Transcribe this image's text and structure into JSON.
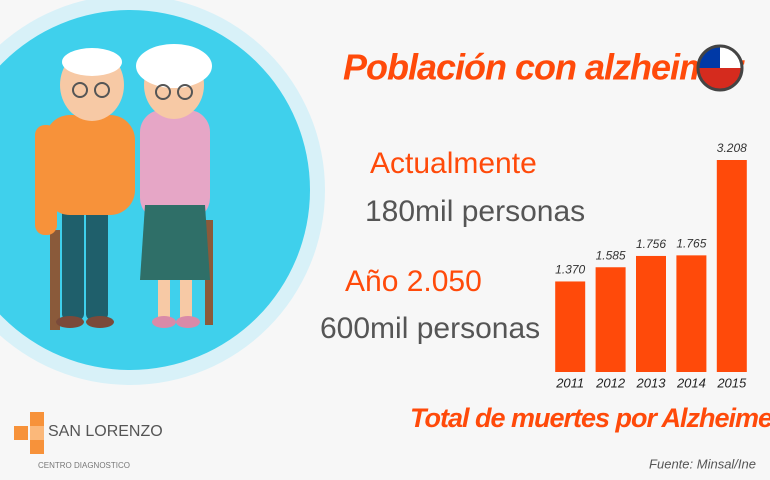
{
  "header": {
    "title": "Población con alzheimer"
  },
  "stats": [
    {
      "label": "Actualmente",
      "value": "180mil personas"
    },
    {
      "label": "Año 2.050",
      "value": "600mil personas"
    }
  ],
  "chart_data": {
    "type": "bar",
    "title": "Total de muertes por Alzheimer",
    "categories": [
      "2011",
      "2012",
      "2013",
      "2014",
      "2015"
    ],
    "values": [
      1370,
      1585,
      1756,
      1765,
      3208
    ],
    "value_labels": [
      "1.370",
      "1.585",
      "1.756",
      "1.765",
      "3.208"
    ],
    "color": "#ff4a0a"
  },
  "source": "Fuente: Minsal/Ine",
  "logo": {
    "name": "SAN LORENZO",
    "subtitle": "CENTRO DIAGNOSTICO"
  }
}
